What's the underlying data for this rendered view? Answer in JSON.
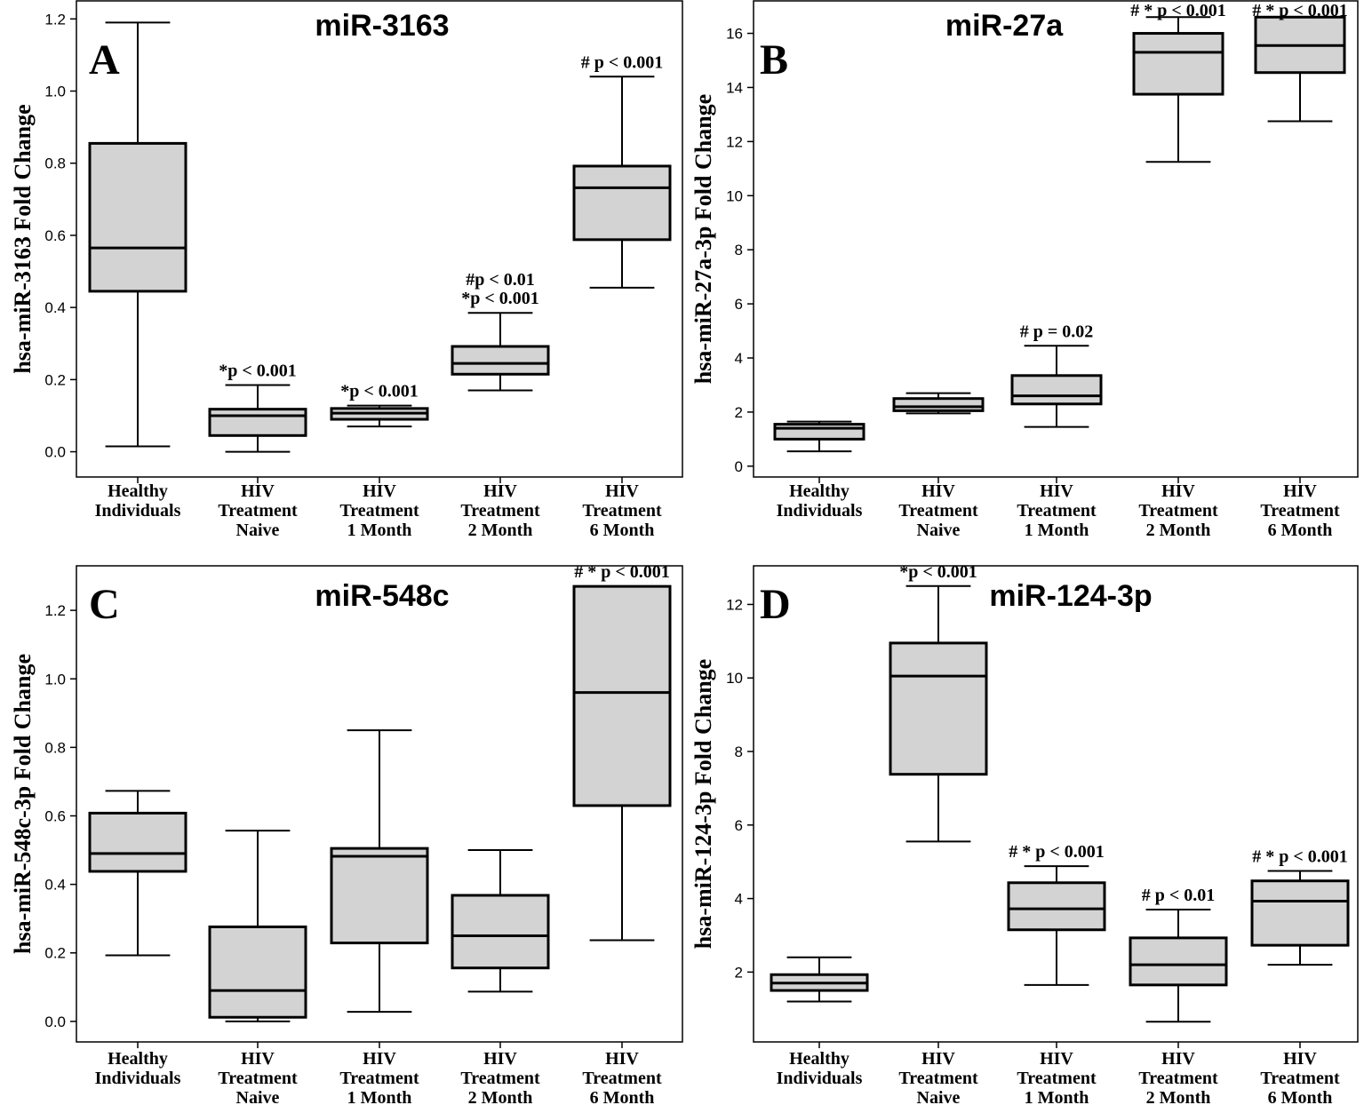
{
  "chart_data": [
    {
      "type": "box",
      "panel": "A",
      "title": "miR-3163",
      "ylabel": "hsa-miR-3163 Fold Change",
      "ylim": [
        -0.07,
        1.25
      ],
      "yticks": [
        "0.0",
        "0.2",
        "0.4",
        "0.6",
        "0.8",
        "1.0",
        "1.2"
      ],
      "categories": [
        [
          "Healthy",
          "Individuals"
        ],
        [
          "HIV",
          "Treatment",
          "Naive"
        ],
        [
          "HIV",
          "Treatment",
          "1 Month"
        ],
        [
          "HIV",
          "Treatment",
          "2 Month"
        ],
        [
          "HIV",
          "Treatment",
          "6 Month"
        ]
      ],
      "boxes": [
        {
          "min": 0.015,
          "q1": 0.445,
          "median": 0.565,
          "q3": 0.855,
          "max": 1.19,
          "annotation": []
        },
        {
          "min": 0.0,
          "q1": 0.045,
          "median": 0.1,
          "q3": 0.118,
          "max": 0.185,
          "annotation": [
            "*p < 0.001"
          ]
        },
        {
          "min": 0.07,
          "q1": 0.09,
          "median": 0.107,
          "q3": 0.12,
          "max": 0.128,
          "annotation": [
            "*p < 0.001"
          ]
        },
        {
          "min": 0.17,
          "q1": 0.215,
          "median": 0.245,
          "q3": 0.292,
          "max": 0.385,
          "annotation": [
            "#p < 0.01",
            "*p < 0.001"
          ]
        },
        {
          "min": 0.455,
          "q1": 0.588,
          "median": 0.732,
          "q3": 0.792,
          "max": 1.04,
          "annotation": [
            "# p < 0.001"
          ]
        }
      ]
    },
    {
      "type": "box",
      "panel": "B",
      "title": "miR-27a",
      "ylabel": "hsa-miR-27a-3p Fold Change",
      "ylim": [
        -0.4,
        17.2
      ],
      "yticks": [
        "0",
        "2",
        "4",
        "6",
        "8",
        "10",
        "12",
        "14",
        "16"
      ],
      "categories": [
        [
          "Healthy",
          "Individuals"
        ],
        [
          "HIV",
          "Treatment",
          "Naive"
        ],
        [
          "HIV",
          "Treatment",
          "1 Month"
        ],
        [
          "HIV",
          "Treatment",
          "2 Month"
        ],
        [
          "HIV",
          "Treatment",
          "6 Month"
        ]
      ],
      "boxes": [
        {
          "min": 0.55,
          "q1": 1.0,
          "median": 1.4,
          "q3": 1.55,
          "max": 1.65,
          "annotation": []
        },
        {
          "min": 1.95,
          "q1": 2.05,
          "median": 2.2,
          "q3": 2.5,
          "max": 2.7,
          "annotation": []
        },
        {
          "min": 1.45,
          "q1": 2.3,
          "median": 2.6,
          "q3": 3.35,
          "max": 4.45,
          "annotation": [
            "# p = 0.02"
          ]
        },
        {
          "min": 11.25,
          "q1": 13.75,
          "median": 15.3,
          "q3": 16.0,
          "max": 16.6,
          "annotation": [
            "# * p < 0.001"
          ]
        },
        {
          "min": 12.75,
          "q1": 14.55,
          "median": 15.55,
          "q3": 16.6,
          "max": 16.6,
          "annotation": [
            "# * p < 0.001"
          ]
        }
      ]
    },
    {
      "type": "box",
      "panel": "C",
      "title": "miR-548c",
      "ylabel": "hsa-miR-548c-3p Fold Change",
      "ylim": [
        -0.06,
        1.33
      ],
      "yticks": [
        "0.0",
        "0.2",
        "0.4",
        "0.6",
        "0.8",
        "1.0",
        "1.2"
      ],
      "categories": [
        [
          "Healthy",
          "Individuals"
        ],
        [
          "HIV",
          "Treatment",
          "Naive"
        ],
        [
          "HIV",
          "Treatment",
          "1 Month"
        ],
        [
          "HIV",
          "Treatment",
          "2 Month"
        ],
        [
          "HIV",
          "Treatment",
          "6 Month"
        ]
      ],
      "boxes": [
        {
          "min": 0.193,
          "q1": 0.438,
          "median": 0.49,
          "q3": 0.608,
          "max": 0.673,
          "annotation": []
        },
        {
          "min": 0.0,
          "q1": 0.012,
          "median": 0.09,
          "q3": 0.276,
          "max": 0.557,
          "annotation": []
        },
        {
          "min": 0.028,
          "q1": 0.229,
          "median": 0.482,
          "q3": 0.505,
          "max": 0.85,
          "annotation": []
        },
        {
          "min": 0.087,
          "q1": 0.156,
          "median": 0.25,
          "q3": 0.368,
          "max": 0.5,
          "annotation": []
        },
        {
          "min": 0.237,
          "q1": 0.63,
          "median": 0.96,
          "q3": 1.27,
          "max": 1.27,
          "annotation": [
            "# * p < 0.001"
          ]
        }
      ]
    },
    {
      "type": "box",
      "panel": "D",
      "title": "miR-124-3p",
      "ylabel": "hsa-miR-124-3p Fold Change",
      "ylim": [
        0.1,
        13.05
      ],
      "yticks": [
        "2",
        "4",
        "6",
        "8",
        "10",
        "12"
      ],
      "categories": [
        [
          "Healthy",
          "Individuals"
        ],
        [
          "HIV",
          "Treatment",
          "Naive"
        ],
        [
          "HIV",
          "Treatment",
          "1 Month"
        ],
        [
          "HIV",
          "Treatment",
          "2 Month"
        ],
        [
          "HIV",
          "Treatment",
          "6 Month"
        ]
      ],
      "boxes": [
        {
          "min": 1.2,
          "q1": 1.5,
          "median": 1.7,
          "q3": 1.93,
          "max": 2.4,
          "annotation": []
        },
        {
          "min": 5.55,
          "q1": 7.38,
          "median": 10.05,
          "q3": 10.95,
          "max": 12.5,
          "annotation": [
            "*p < 0.001"
          ]
        },
        {
          "min": 1.65,
          "q1": 3.15,
          "median": 3.72,
          "q3": 4.43,
          "max": 4.88,
          "annotation": [
            "# * p < 0.001"
          ]
        },
        {
          "min": 0.65,
          "q1": 1.65,
          "median": 2.2,
          "q3": 2.93,
          "max": 3.7,
          "annotation": [
            "# p < 0.01"
          ]
        },
        {
          "min": 2.2,
          "q1": 2.73,
          "median": 3.93,
          "q3": 4.48,
          "max": 4.75,
          "annotation": [
            "# * p < 0.001"
          ]
        }
      ]
    }
  ]
}
